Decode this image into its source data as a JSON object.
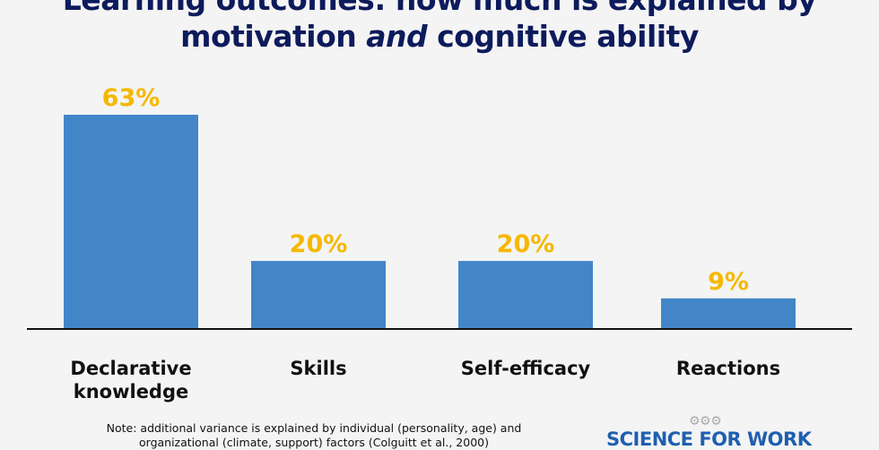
{
  "title": {
    "line1": "Learning outcomes: how much is explained by",
    "line2_a": "motivation ",
    "line2_em": "and",
    "line2_b": " cognitive ability"
  },
  "chart_data": {
    "type": "bar",
    "title": "Learning outcomes: how much is explained by motivation and cognitive ability",
    "categories": [
      [
        "Declarative",
        "knowledge"
      ],
      [
        "Skills"
      ],
      [
        "Self-efficacy"
      ],
      [
        "Reactions"
      ]
    ],
    "values": [
      63,
      20,
      20,
      9
    ],
    "data_labels": [
      "63%",
      "20%",
      "20%",
      "9%"
    ],
    "ylim": [
      0,
      65
    ],
    "bar_color": "#4286c8",
    "label_color": "#f5b800"
  },
  "note": {
    "line1": "Note: additional variance is explained by individual (personality, age) and",
    "line2": "organizational (climate, support) factors  (Colguitt et al., 2000)"
  },
  "logo": "SCIENCE FOR WORK"
}
